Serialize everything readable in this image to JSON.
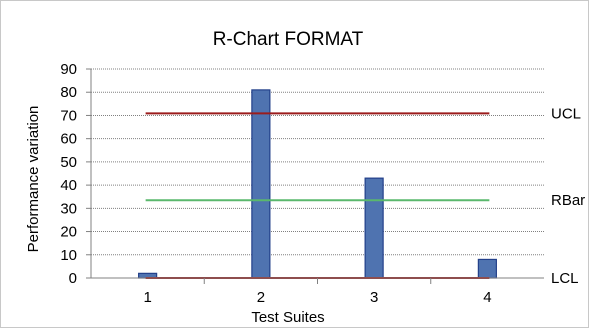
{
  "chart_data": {
    "type": "bar",
    "title": "R-Chart FORMAT",
    "xlabel": "Test Suites",
    "ylabel": "Performance variation",
    "categories": [
      "1",
      "2",
      "3",
      "4"
    ],
    "values": [
      2,
      81,
      43,
      8
    ],
    "ylim": [
      0,
      90
    ],
    "yticks": [
      "0",
      "10",
      "20",
      "30",
      "40",
      "50",
      "60",
      "70",
      "80",
      "90"
    ],
    "grid": true,
    "bar_color": "#4f73b0",
    "bar_edge_color": "#23408a",
    "control_lines": [
      {
        "label": "UCL",
        "value": 70.9,
        "color": "#9b1c1c"
      },
      {
        "label": "RBar",
        "value": 33.5,
        "color": "#5ab86d"
      },
      {
        "label": "LCL",
        "value": 0,
        "color": "#9b1c1c"
      }
    ]
  }
}
